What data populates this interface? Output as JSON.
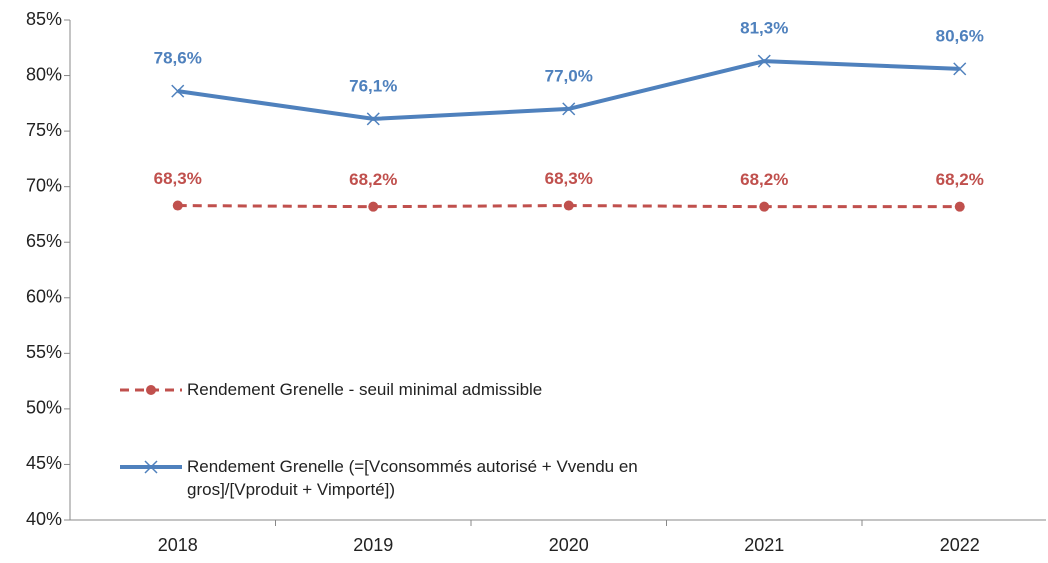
{
  "chart_data": {
    "type": "line",
    "categories": [
      "2018",
      "2019",
      "2020",
      "2021",
      "2022"
    ],
    "series": [
      {
        "name": "Rendement Grenelle - seuil minimal admissible",
        "color": "#c0504d",
        "dash": true,
        "marker": "circle",
        "values": [
          68.3,
          68.2,
          68.3,
          68.2,
          68.2
        ],
        "value_labels": [
          "68,3%",
          "68,2%",
          "68,3%",
          "68,2%",
          "68,2%"
        ]
      },
      {
        "name": "Rendement Grenelle (=[Vconsommés autorisé + Vvendu en gros]/[Vproduit + Vimporté])",
        "color": "#4f81bd",
        "dash": false,
        "marker": "x",
        "values": [
          78.6,
          76.1,
          77.0,
          81.3,
          80.6
        ],
        "value_labels": [
          "78,6%",
          "76,1%",
          "77,0%",
          "81,3%",
          "80,6%"
        ]
      }
    ],
    "ylim": [
      40,
      85
    ],
    "yticks": [
      {
        "value": 40,
        "label": "40%"
      },
      {
        "value": 45,
        "label": "45%"
      },
      {
        "value": 50,
        "label": "50%"
      },
      {
        "value": 55,
        "label": "55%"
      },
      {
        "value": 60,
        "label": "60%"
      },
      {
        "value": 65,
        "label": "65%"
      },
      {
        "value": 70,
        "label": "70%"
      },
      {
        "value": 75,
        "label": "75%"
      },
      {
        "value": 80,
        "label": "80%"
      },
      {
        "value": 85,
        "label": "85%"
      }
    ]
  }
}
